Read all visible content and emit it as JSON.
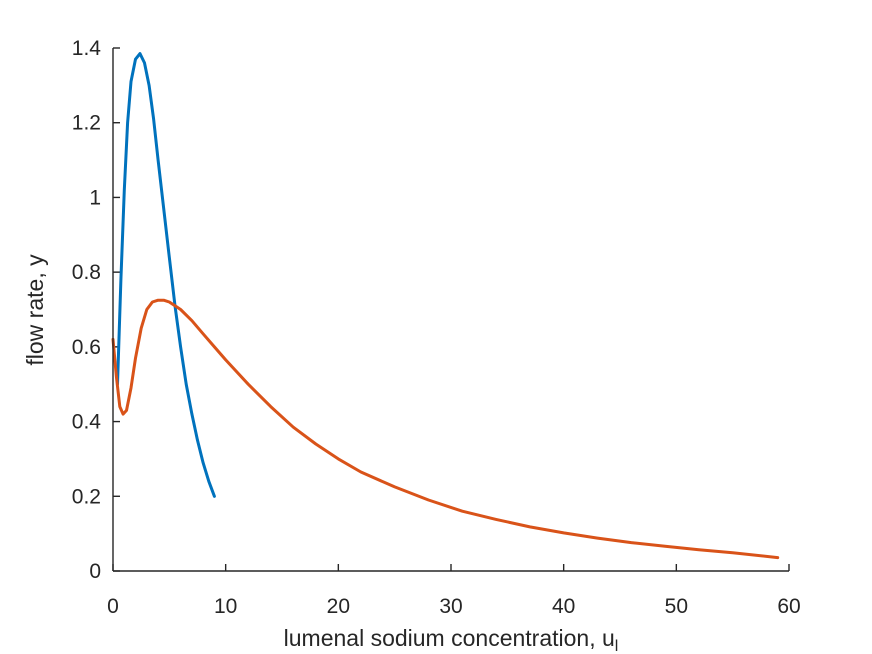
{
  "chart_data": {
    "type": "line",
    "title": "",
    "xlabel": "lumenal sodium concentration, u",
    "xlabel_subscript": "l",
    "ylabel": "flow rate, y",
    "xlim": [
      0,
      60
    ],
    "ylim": [
      0,
      1.4
    ],
    "x_ticks": [
      0,
      10,
      20,
      30,
      40,
      50,
      60
    ],
    "y_ticks": [
      0,
      0.2,
      0.4,
      0.6,
      0.8,
      1,
      1.2,
      1.4
    ],
    "x_tick_labels": [
      "0",
      "10",
      "20",
      "30",
      "40",
      "50",
      "60"
    ],
    "y_tick_labels": [
      "0",
      "0.2",
      "0.4",
      "0.6",
      "0.8",
      "1",
      "1.2",
      "1.4"
    ],
    "grid": false,
    "legend": "none",
    "series": [
      {
        "color": "#0072BD",
        "x": [
          0.4,
          0.7,
          1.0,
          1.3,
          1.6,
          2.0,
          2.4,
          2.8,
          3.2,
          3.6,
          4.0,
          4.5,
          5.0,
          5.5,
          6.0,
          6.5,
          7.0,
          7.5,
          8.0,
          8.5,
          9.0
        ],
        "y": [
          0.5,
          0.78,
          1.02,
          1.2,
          1.31,
          1.37,
          1.385,
          1.36,
          1.3,
          1.21,
          1.1,
          0.97,
          0.84,
          0.71,
          0.6,
          0.5,
          0.42,
          0.35,
          0.29,
          0.24,
          0.2
        ]
      },
      {
        "color": "#D95319",
        "x": [
          0.0,
          0.3,
          0.6,
          0.9,
          1.2,
          1.6,
          2.0,
          2.5,
          3.0,
          3.5,
          4.0,
          4.5,
          5.0,
          5.5,
          6.0,
          7.0,
          8.0,
          9.0,
          10.0,
          12.0,
          14.0,
          16.0,
          18.0,
          20.0,
          22.0,
          25.0,
          28.0,
          31.0,
          34.0,
          37.0,
          40.0,
          43.0,
          46.0,
          49.0,
          52.0,
          55.0,
          59.0
        ],
        "y": [
          0.62,
          0.52,
          0.44,
          0.42,
          0.43,
          0.49,
          0.57,
          0.65,
          0.7,
          0.72,
          0.725,
          0.725,
          0.72,
          0.71,
          0.7,
          0.67,
          0.635,
          0.6,
          0.565,
          0.5,
          0.44,
          0.385,
          0.34,
          0.3,
          0.265,
          0.225,
          0.19,
          0.16,
          0.138,
          0.118,
          0.102,
          0.088,
          0.076,
          0.066,
          0.057,
          0.049,
          0.036
        ]
      }
    ]
  }
}
